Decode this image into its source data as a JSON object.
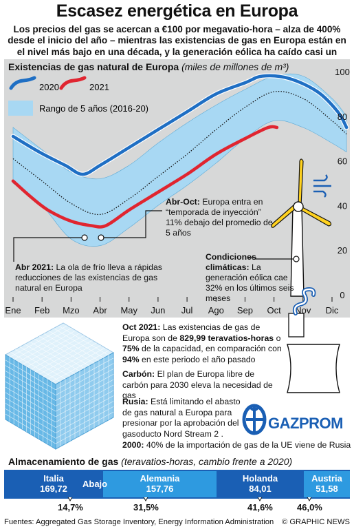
{
  "title": "Escasez energética en Europa",
  "subtitle": "Los precios del gas se acercan a €100 por megavatio-hora – alza de 400% desde el inicio del año – mientras las existencias de gas en Europa están en el nivel más bajo en una década, y la generación eólica ha caído casi un tercio",
  "chart_data": {
    "type": "line",
    "title": "Existencias de gas natural de Europa",
    "units": "(miles de millones de m³)",
    "categories": [
      "Ene",
      "Feb",
      "Mzo",
      "Abr",
      "May",
      "Jun",
      "Jul",
      "Ago",
      "Sep",
      "Oct",
      "Nov",
      "Dic"
    ],
    "y_ticks": [
      0,
      20,
      40,
      60,
      80,
      100
    ],
    "ylim": [
      0,
      100
    ],
    "grid": false,
    "legend": [
      {
        "name": "2020",
        "color": "#1f6fc4"
      },
      {
        "name": "2021",
        "color": "#e02530"
      },
      {
        "name": "Rango de 5 años (2016-20)",
        "color": "#a8d8f3"
      }
    ],
    "series": [
      {
        "name": "2020",
        "x": [
          0,
          0.9,
          1.8,
          2.4,
          3.0,
          4.0,
          5.0,
          6.0,
          7.0,
          8.0,
          8.6,
          9.5,
          10.5,
          11.2,
          11.5
        ],
        "values": [
          71,
          64,
          58,
          54,
          58,
          66,
          74,
          82,
          90,
          95,
          98,
          97,
          91,
          82,
          75
        ]
      },
      {
        "name": "2021",
        "x": [
          0,
          0.6,
          1.2,
          2.0,
          2.7,
          3.2,
          4.0,
          5.0,
          6.0,
          7.0,
          8.0,
          8.8,
          9.1
        ],
        "values": [
          51,
          44,
          38,
          33,
          31,
          31,
          38,
          46,
          54,
          63,
          70,
          75,
          75
        ]
      },
      {
        "name": "Promedio 5 años",
        "x": [
          0,
          1.0,
          2.0,
          3.0,
          4.0,
          5.0,
          6.0,
          7.0,
          8.0,
          9.0,
          10.0,
          11.0,
          11.5
        ],
        "values": [
          61,
          51,
          41,
          36,
          43,
          53,
          63,
          74,
          84,
          91,
          88,
          78,
          72
        ]
      }
    ],
    "range_band": {
      "x": [
        0,
        1.0,
        2.0,
        3.0,
        4.0,
        5.0,
        6.0,
        7.0,
        8.0,
        9.0,
        10.0,
        11.0,
        11.5
      ],
      "upper": [
        75,
        65,
        55,
        52,
        58,
        68,
        77,
        85,
        92,
        98,
        98,
        88,
        80
      ],
      "lower": [
        50,
        40,
        25,
        22,
        30,
        40,
        49,
        59,
        70,
        78,
        75,
        68,
        64
      ]
    },
    "annotations": [
      {
        "bold": "Abr-Oct:",
        "text": "Europa entra en “temporada de inyección” 11% debajo del promedio de 5 años"
      },
      {
        "bold": "Abr 2021:",
        "text": "La ola de frío lleva a rápidas reducciones de las existencias de gas natural en Europa"
      },
      {
        "bold": "Condiciones climáticas:",
        "text": "La generación eólica cae 32% en los últimos seis meses"
      }
    ]
  },
  "info": {
    "oct_bold": "Oct 2021:",
    "oct_text1": "Las existencias de gas de Europa son de",
    "oct_value1": "829,99 teravatios-horas",
    "oct_text2": "o",
    "oct_value2": "75%",
    "oct_text3": "de la capacidad, en comparación con",
    "oct_value3": "94%",
    "oct_text4": "en este periodo el año pasado",
    "coal_bold": "Carbón:",
    "coal_text": "El plan de Europa libre de carbón para 2030 eleva la necesidad de gas",
    "russia_bold": "Rusia:",
    "russia_text": "Está limitando el abasto de gas natural a Europa para presionar por la aprobación del gasoducto Nord Stream 2 .",
    "import_bold": "2000:",
    "import_text": "40% de la importación de gas de la UE viene de Rusia",
    "gazprom": "GAZPROM"
  },
  "storage": {
    "title": "Almacenamiento de gas",
    "units": "(teravatios-horas, cambio frente a 2020)",
    "down_label": "Abajo",
    "countries": [
      {
        "name": "Italia",
        "value": "169,72",
        "change": "14,7%",
        "color": "#1a5fb4"
      },
      {
        "name": "Alemania",
        "value": "157,76",
        "change": "31,5%",
        "color": "#2e9ae0"
      },
      {
        "name": "Holanda",
        "value": "84,01",
        "change": "41,6%",
        "color": "#1a5fb4"
      },
      {
        "name": "Austria",
        "value": "51,58",
        "change": "46,0%",
        "color": "#2e9ae0"
      }
    ]
  },
  "footer": {
    "sources": "Fuentes: Aggregated Gas Storage Inventory, Energy Information Administration",
    "credit": "© GRAPHIC NEWS"
  },
  "watermark": "GRAPHIC NEWS"
}
